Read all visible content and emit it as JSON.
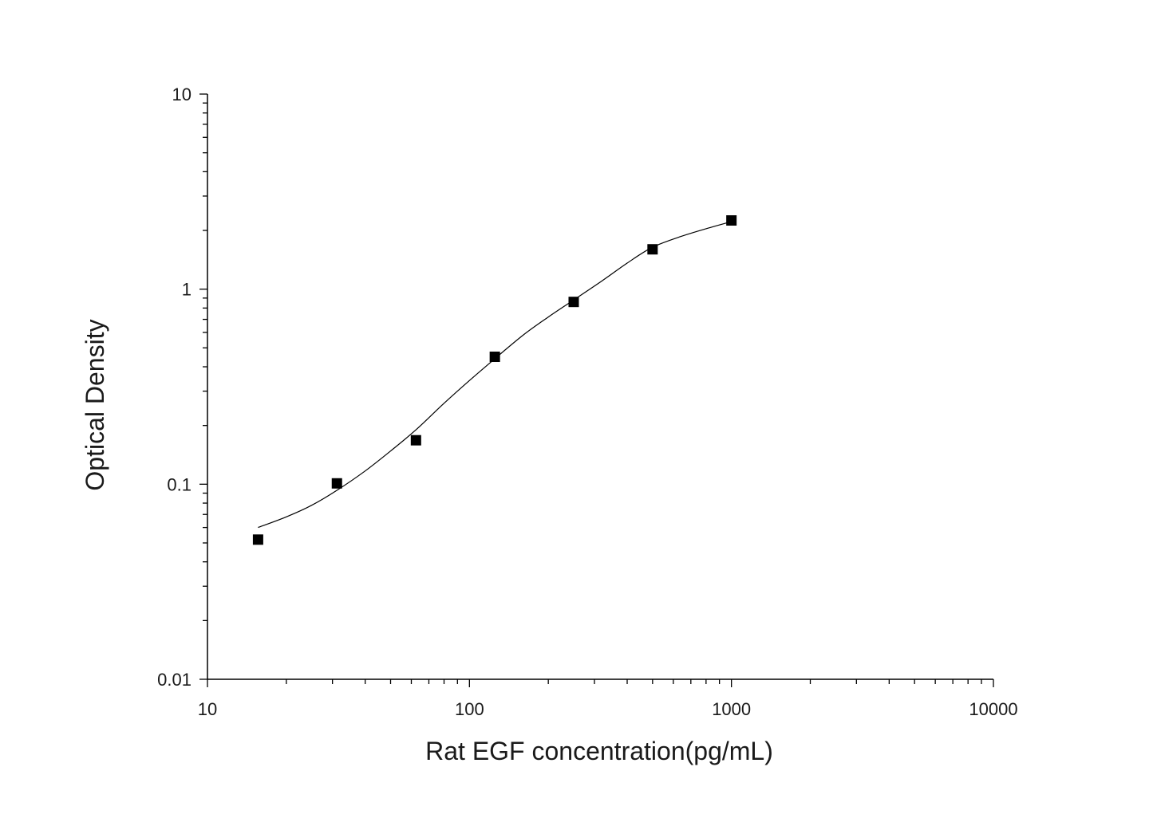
{
  "chart_data": {
    "type": "scatter",
    "title": "",
    "xlabel": "Rat EGF concentration(pg/mL)",
    "ylabel": "Optical Density",
    "xscale": "log",
    "yscale": "log",
    "xlim": [
      10,
      10000
    ],
    "ylim": [
      0.01,
      10
    ],
    "x_ticks": [
      10,
      100,
      1000,
      10000
    ],
    "x_tick_labels": [
      "10",
      "100",
      "1000",
      "10000"
    ],
    "y_ticks": [
      0.01,
      0.1,
      1,
      10
    ],
    "y_tick_labels": [
      "0.01",
      "0.1",
      "1",
      "10"
    ],
    "grid": false,
    "legend": "none",
    "series": [
      {
        "marker": "square",
        "color": "#000000",
        "x": [
          15.6,
          31.2,
          62.5,
          125,
          250,
          500,
          1000
        ],
        "y": [
          0.052,
          0.101,
          0.168,
          0.45,
          0.86,
          1.6,
          2.25
        ]
      }
    ],
    "fit_curve": {
      "color": "#000000",
      "x": [
        15.6,
        20,
        25,
        31.2,
        40,
        50,
        62.5,
        80,
        100,
        125,
        160,
        200,
        250,
        320,
        400,
        500,
        640,
        800,
        1000
      ],
      "y": [
        0.06,
        0.068,
        0.078,
        0.093,
        0.117,
        0.148,
        0.19,
        0.26,
        0.34,
        0.44,
        0.58,
        0.72,
        0.88,
        1.1,
        1.36,
        1.64,
        1.86,
        2.04,
        2.22
      ]
    }
  }
}
